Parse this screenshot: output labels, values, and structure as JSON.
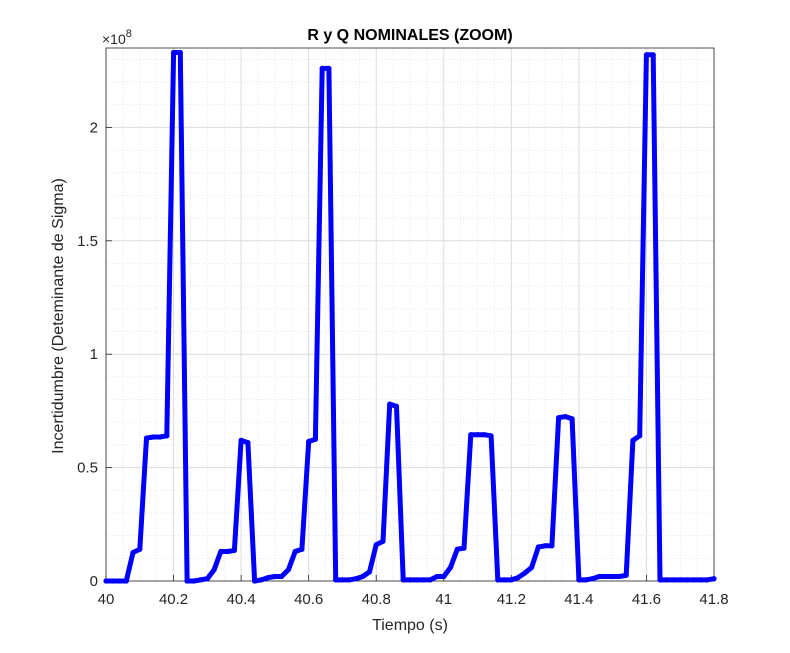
{
  "chart_data": {
    "type": "line",
    "title": "R y Q NOMINALES (ZOOM)",
    "xlabel": "Tiempo (s)",
    "ylabel": "Incertidumbre (Deteminante de Sigma)",
    "y_exponent_label": "×10",
    "y_exponent_power": "8",
    "xlim": [
      40,
      41.8
    ],
    "ylim": [
      0,
      2.35
    ],
    "y_multiplier": 100000000,
    "x_ticks": [
      40,
      40.2,
      40.4,
      40.6,
      40.8,
      41,
      41.2,
      41.4,
      41.6,
      41.8
    ],
    "x_tick_labels": [
      "40",
      "40.2",
      "40.4",
      "40.6",
      "40.8",
      "41",
      "41.2",
      "41.4",
      "41.6",
      "41.8"
    ],
    "y_ticks": [
      0,
      0.5,
      1,
      1.5,
      2
    ],
    "y_tick_labels": [
      "0",
      "0.5",
      "1",
      "1.5",
      "2"
    ],
    "grid": true,
    "minor_grid": true,
    "line_color": "#0000ff",
    "series": [
      {
        "x": [
          40.0,
          40.02,
          40.04,
          40.06,
          40.08,
          40.1,
          40.12,
          40.14,
          40.16,
          40.18,
          40.2,
          40.22,
          40.24,
          40.26,
          40.28,
          40.3,
          40.32,
          40.34,
          40.36,
          40.38,
          40.4,
          40.42,
          40.44,
          40.46,
          40.48,
          40.5,
          40.52,
          40.54,
          40.56,
          40.58,
          40.6,
          40.62,
          40.64,
          40.66,
          40.68,
          40.7,
          40.72,
          40.74,
          40.76,
          40.78,
          40.8,
          40.82,
          40.84,
          40.86,
          40.88,
          40.9,
          40.92,
          40.94,
          40.96,
          40.98,
          41.0,
          41.02,
          41.04,
          41.06,
          41.08,
          41.1,
          41.12,
          41.14,
          41.16,
          41.18,
          41.2,
          41.22,
          41.24,
          41.26,
          41.28,
          41.3,
          41.32,
          41.34,
          41.36,
          41.38,
          41.4,
          41.42,
          41.44,
          41.46,
          41.48,
          41.5,
          41.52,
          41.54,
          41.56,
          41.58,
          41.6,
          41.62,
          41.64,
          41.66,
          41.68,
          41.7,
          41.72,
          41.74,
          41.76,
          41.78,
          41.8
        ],
        "y": [
          0.0,
          0.0,
          0.0,
          0.0,
          0.125,
          0.14,
          0.63,
          0.635,
          0.635,
          0.64,
          2.33,
          2.33,
          0.0,
          0.0,
          0.005,
          0.01,
          0.05,
          0.13,
          0.13,
          0.135,
          0.62,
          0.61,
          0.0,
          0.005,
          0.015,
          0.02,
          0.02,
          0.05,
          0.13,
          0.14,
          0.615,
          0.625,
          2.26,
          2.26,
          0.005,
          0.005,
          0.005,
          0.01,
          0.02,
          0.04,
          0.16,
          0.175,
          0.78,
          0.77,
          0.005,
          0.005,
          0.005,
          0.005,
          0.005,
          0.02,
          0.02,
          0.06,
          0.14,
          0.145,
          0.645,
          0.645,
          0.645,
          0.64,
          0.005,
          0.005,
          0.005,
          0.015,
          0.035,
          0.06,
          0.15,
          0.155,
          0.155,
          0.72,
          0.725,
          0.715,
          0.005,
          0.005,
          0.01,
          0.02,
          0.02,
          0.02,
          0.02,
          0.025,
          0.62,
          0.64,
          2.32,
          2.32,
          0.005,
          0.005,
          0.005,
          0.005,
          0.005,
          0.005,
          0.005,
          0.005,
          0.01
        ]
      }
    ]
  }
}
